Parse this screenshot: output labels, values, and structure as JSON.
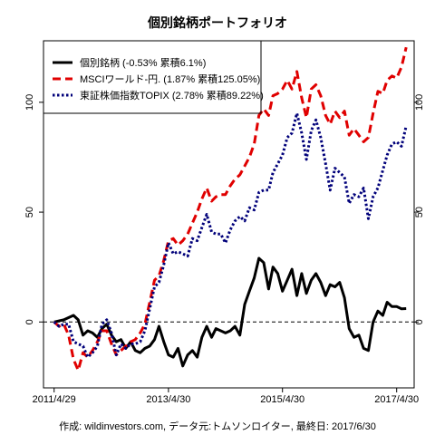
{
  "chart_data": {
    "type": "line",
    "title": "個別銘柄ポートフォリオ",
    "caption": "作成: wildinvestors.com, データ元:トムソンロイター, 最終日: 2017/6/30",
    "xlabel": "",
    "ylabel": "",
    "x_ticks": [
      {
        "date": "2011/4/29",
        "label": "2011/4/29"
      },
      {
        "date": "2013/4/30",
        "label": "2013/4/30"
      },
      {
        "date": "2015/4/30",
        "label": "2015/4/30"
      },
      {
        "date": "2017/4/30",
        "label": "2017/4/30"
      }
    ],
    "y_ticks": [
      0,
      50,
      100
    ],
    "ylim": [
      -30,
      128
    ],
    "xlim": [
      "2011/2/20",
      "2017/8/20"
    ],
    "reference_line": 0,
    "legend_position": "top-left",
    "series": [
      {
        "name": "個別銘柄 (-0.53% 累積6.1%)",
        "color": "#000000",
        "style": "solid",
        "points": [
          [
            "2011/4/29",
            0
          ],
          [
            "2011/6/30",
            1
          ],
          [
            "2011/8/31",
            3
          ],
          [
            "2011/9/30",
            1
          ],
          [
            "2011/10/31",
            -6
          ],
          [
            "2011/11/30",
            -4
          ],
          [
            "2011/12/31",
            -5
          ],
          [
            "2012/1/31",
            -7
          ],
          [
            "2012/2/29",
            -3
          ],
          [
            "2012/3/31",
            -1
          ],
          [
            "2012/4/30",
            -6
          ],
          [
            "2012/5/31",
            -9
          ],
          [
            "2012/6/30",
            -8
          ],
          [
            "2012/7/31",
            -12
          ],
          [
            "2012/8/31",
            -9
          ],
          [
            "2012/9/30",
            -13
          ],
          [
            "2012/10/31",
            -14
          ],
          [
            "2012/11/30",
            -12
          ],
          [
            "2012/12/31",
            -11
          ],
          [
            "2013/1/31",
            -8
          ],
          [
            "2013/2/28",
            -2
          ],
          [
            "2013/3/31",
            -9
          ],
          [
            "2013/4/30",
            -15
          ],
          [
            "2013/5/31",
            -16
          ],
          [
            "2013/6/30",
            -12
          ],
          [
            "2013/7/31",
            -20
          ],
          [
            "2013/8/31",
            -15
          ],
          [
            "2013/9/30",
            -13
          ],
          [
            "2013/10/31",
            -16
          ],
          [
            "2013/11/30",
            -7
          ],
          [
            "2013/12/31",
            -2
          ],
          [
            "2014/1/31",
            -7
          ],
          [
            "2014/2/28",
            -3
          ],
          [
            "2014/3/31",
            -4
          ],
          [
            "2014/4/30",
            -5
          ],
          [
            "2014/5/31",
            -4
          ],
          [
            "2014/6/30",
            -2
          ],
          [
            "2014/7/31",
            -6
          ],
          [
            "2014/8/31",
            8
          ],
          [
            "2014/9/30",
            14
          ],
          [
            "2014/10/31",
            20
          ],
          [
            "2014/11/30",
            29
          ],
          [
            "2014/12/31",
            27
          ],
          [
            "2015/1/31",
            15
          ],
          [
            "2015/2/28",
            25
          ],
          [
            "2015/3/31",
            22
          ],
          [
            "2015/4/30",
            14
          ],
          [
            "2015/5/31",
            19
          ],
          [
            "2015/6/30",
            24
          ],
          [
            "2015/7/31",
            12
          ],
          [
            "2015/8/31",
            22
          ],
          [
            "2015/9/30",
            13
          ],
          [
            "2015/10/31",
            19
          ],
          [
            "2015/11/30",
            22
          ],
          [
            "2015/12/31",
            18
          ],
          [
            "2016/1/31",
            12
          ],
          [
            "2016/2/29",
            17
          ],
          [
            "2016/3/31",
            16
          ],
          [
            "2016/4/30",
            18
          ],
          [
            "2016/5/31",
            11
          ],
          [
            "2016/6/30",
            -3
          ],
          [
            "2016/7/31",
            -7
          ],
          [
            "2016/8/31",
            -6
          ],
          [
            "2016/9/30",
            -12
          ],
          [
            "2016/10/31",
            -13
          ],
          [
            "2016/11/30",
            0
          ],
          [
            "2016/12/31",
            5
          ],
          [
            "2017/1/31",
            3
          ],
          [
            "2017/2/28",
            9
          ],
          [
            "2017/3/31",
            7
          ],
          [
            "2017/4/30",
            7
          ],
          [
            "2017/5/31",
            6
          ],
          [
            "2017/6/30",
            6.1
          ]
        ]
      },
      {
        "name": "MSCIワールド-円. (1.87% 累積125.05%)",
        "color": "#e00000",
        "style": "dashed",
        "points": [
          [
            "2011/4/29",
            0
          ],
          [
            "2011/5/31",
            -2
          ],
          [
            "2011/6/30",
            -1
          ],
          [
            "2011/7/31",
            -6
          ],
          [
            "2011/8/31",
            -17
          ],
          [
            "2011/9/30",
            -22
          ],
          [
            "2011/10/31",
            -14
          ],
          [
            "2011/11/30",
            -16
          ],
          [
            "2011/12/31",
            -13
          ],
          [
            "2012/1/31",
            -9
          ],
          [
            "2012/2/29",
            -4
          ],
          [
            "2012/3/31",
            -4
          ],
          [
            "2012/4/30",
            -10
          ],
          [
            "2012/5/31",
            -15
          ],
          [
            "2012/6/30",
            -13
          ],
          [
            "2012/7/31",
            -11
          ],
          [
            "2012/8/31",
            -9
          ],
          [
            "2012/9/30",
            -8
          ],
          [
            "2012/10/31",
            -5
          ],
          [
            "2012/11/30",
            -1
          ],
          [
            "2012/12/31",
            9
          ],
          [
            "2013/1/31",
            19
          ],
          [
            "2013/2/28",
            21
          ],
          [
            "2013/3/31",
            28
          ],
          [
            "2013/4/30",
            37
          ],
          [
            "2013/5/31",
            38
          ],
          [
            "2013/6/30",
            35
          ],
          [
            "2013/7/31",
            37
          ],
          [
            "2013/8/31",
            40
          ],
          [
            "2013/9/30",
            45
          ],
          [
            "2013/10/31",
            50
          ],
          [
            "2013/11/30",
            56
          ],
          [
            "2013/12/31",
            61
          ],
          [
            "2014/1/31",
            55
          ],
          [
            "2014/2/28",
            57
          ],
          [
            "2014/3/31",
            58
          ],
          [
            "2014/4/30",
            58
          ],
          [
            "2014/5/31",
            62
          ],
          [
            "2014/6/30",
            65
          ],
          [
            "2014/7/31",
            67
          ],
          [
            "2014/8/31",
            71
          ],
          [
            "2014/9/30",
            75
          ],
          [
            "2014/10/31",
            81
          ],
          [
            "2014/11/30",
            94
          ],
          [
            "2014/12/31",
            97
          ],
          [
            "2015/1/31",
            94
          ],
          [
            "2015/2/28",
            103
          ],
          [
            "2015/3/31",
            104
          ],
          [
            "2015/4/30",
            106
          ],
          [
            "2015/5/31",
            110
          ],
          [
            "2015/6/30",
            106
          ],
          [
            "2015/7/31",
            114
          ],
          [
            "2015/8/31",
            102
          ],
          [
            "2015/9/30",
            93
          ],
          [
            "2015/10/31",
            106
          ],
          [
            "2015/11/30",
            108
          ],
          [
            "2015/12/31",
            103
          ],
          [
            "2016/1/31",
            94
          ],
          [
            "2016/2/29",
            90
          ],
          [
            "2016/3/31",
            96
          ],
          [
            "2016/4/30",
            93
          ],
          [
            "2016/5/31",
            96
          ],
          [
            "2016/6/30",
            85
          ],
          [
            "2016/7/31",
            88
          ],
          [
            "2016/8/31",
            85
          ],
          [
            "2016/9/30",
            82
          ],
          [
            "2016/10/31",
            84
          ],
          [
            "2016/11/30",
            95
          ],
          [
            "2016/12/31",
            105
          ],
          [
            "2017/1/31",
            104
          ],
          [
            "2017/2/28",
            110
          ],
          [
            "2017/3/31",
            112
          ],
          [
            "2017/4/30",
            111
          ],
          [
            "2017/5/31",
            116
          ],
          [
            "2017/6/30",
            125.05
          ]
        ]
      },
      {
        "name": "東証株価指数TOPIX (2.78% 累積89.22%)",
        "color": "#00007a",
        "style": "dotted",
        "points": [
          [
            "2011/4/29",
            0
          ],
          [
            "2011/5/31",
            -2
          ],
          [
            "2011/6/30",
            -1
          ],
          [
            "2011/7/31",
            -1
          ],
          [
            "2011/8/31",
            -9
          ],
          [
            "2011/9/30",
            -10
          ],
          [
            "2011/10/31",
            -11
          ],
          [
            "2011/11/30",
            -16
          ],
          [
            "2011/12/31",
            -14
          ],
          [
            "2012/1/31",
            -11
          ],
          [
            "2012/2/29",
            -1
          ],
          [
            "2012/3/31",
            1
          ],
          [
            "2012/4/30",
            -5
          ],
          [
            "2012/5/31",
            -15
          ],
          [
            "2012/6/30",
            -10
          ],
          [
            "2012/7/31",
            -12
          ],
          [
            "2012/8/31",
            -10
          ],
          [
            "2012/9/30",
            -10
          ],
          [
            "2012/10/31",
            -9
          ],
          [
            "2012/11/30",
            -4
          ],
          [
            "2012/12/31",
            6
          ],
          [
            "2013/1/31",
            16
          ],
          [
            "2013/2/28",
            18
          ],
          [
            "2013/3/31",
            26
          ],
          [
            "2013/4/30",
            36
          ],
          [
            "2013/5/31",
            31
          ],
          [
            "2013/6/30",
            32
          ],
          [
            "2013/7/31",
            31
          ],
          [
            "2013/8/31",
            30
          ],
          [
            "2013/9/30",
            38
          ],
          [
            "2013/10/31",
            37
          ],
          [
            "2013/11/30",
            43
          ],
          [
            "2013/12/31",
            49
          ],
          [
            "2014/1/31",
            41
          ],
          [
            "2014/2/28",
            40
          ],
          [
            "2014/3/31",
            40
          ],
          [
            "2014/4/30",
            36
          ],
          [
            "2014/5/31",
            42
          ],
          [
            "2014/6/30",
            46
          ],
          [
            "2014/7/31",
            48
          ],
          [
            "2014/8/31",
            46
          ],
          [
            "2014/9/30",
            52
          ],
          [
            "2014/10/31",
            51
          ],
          [
            "2014/11/30",
            59
          ],
          [
            "2014/12/31",
            60
          ],
          [
            "2015/1/31",
            60
          ],
          [
            "2015/2/28",
            68
          ],
          [
            "2015/3/31",
            72
          ],
          [
            "2015/4/30",
            76
          ],
          [
            "2015/5/31",
            84
          ],
          [
            "2015/6/30",
            86
          ],
          [
            "2015/7/31",
            95
          ],
          [
            "2015/8/31",
            86
          ],
          [
            "2015/9/30",
            74
          ],
          [
            "2015/10/31",
            87
          ],
          [
            "2015/11/30",
            92
          ],
          [
            "2015/12/31",
            84
          ],
          [
            "2016/1/31",
            72
          ],
          [
            "2016/2/29",
            60
          ],
          [
            "2016/3/31",
            70
          ],
          [
            "2016/4/30",
            68
          ],
          [
            "2016/5/31",
            66
          ],
          [
            "2016/6/30",
            54
          ],
          [
            "2016/7/31",
            58
          ],
          [
            "2016/8/31",
            57
          ],
          [
            "2016/9/30",
            61
          ],
          [
            "2016/10/31",
            47
          ],
          [
            "2016/11/30",
            57
          ],
          [
            "2016/12/31",
            61
          ],
          [
            "2017/1/31",
            69
          ],
          [
            "2017/2/28",
            76
          ],
          [
            "2017/3/31",
            81
          ],
          [
            "2017/4/30",
            82
          ],
          [
            "2017/5/31",
            80
          ],
          [
            "2017/6/30",
            89.22
          ]
        ]
      }
    ]
  }
}
